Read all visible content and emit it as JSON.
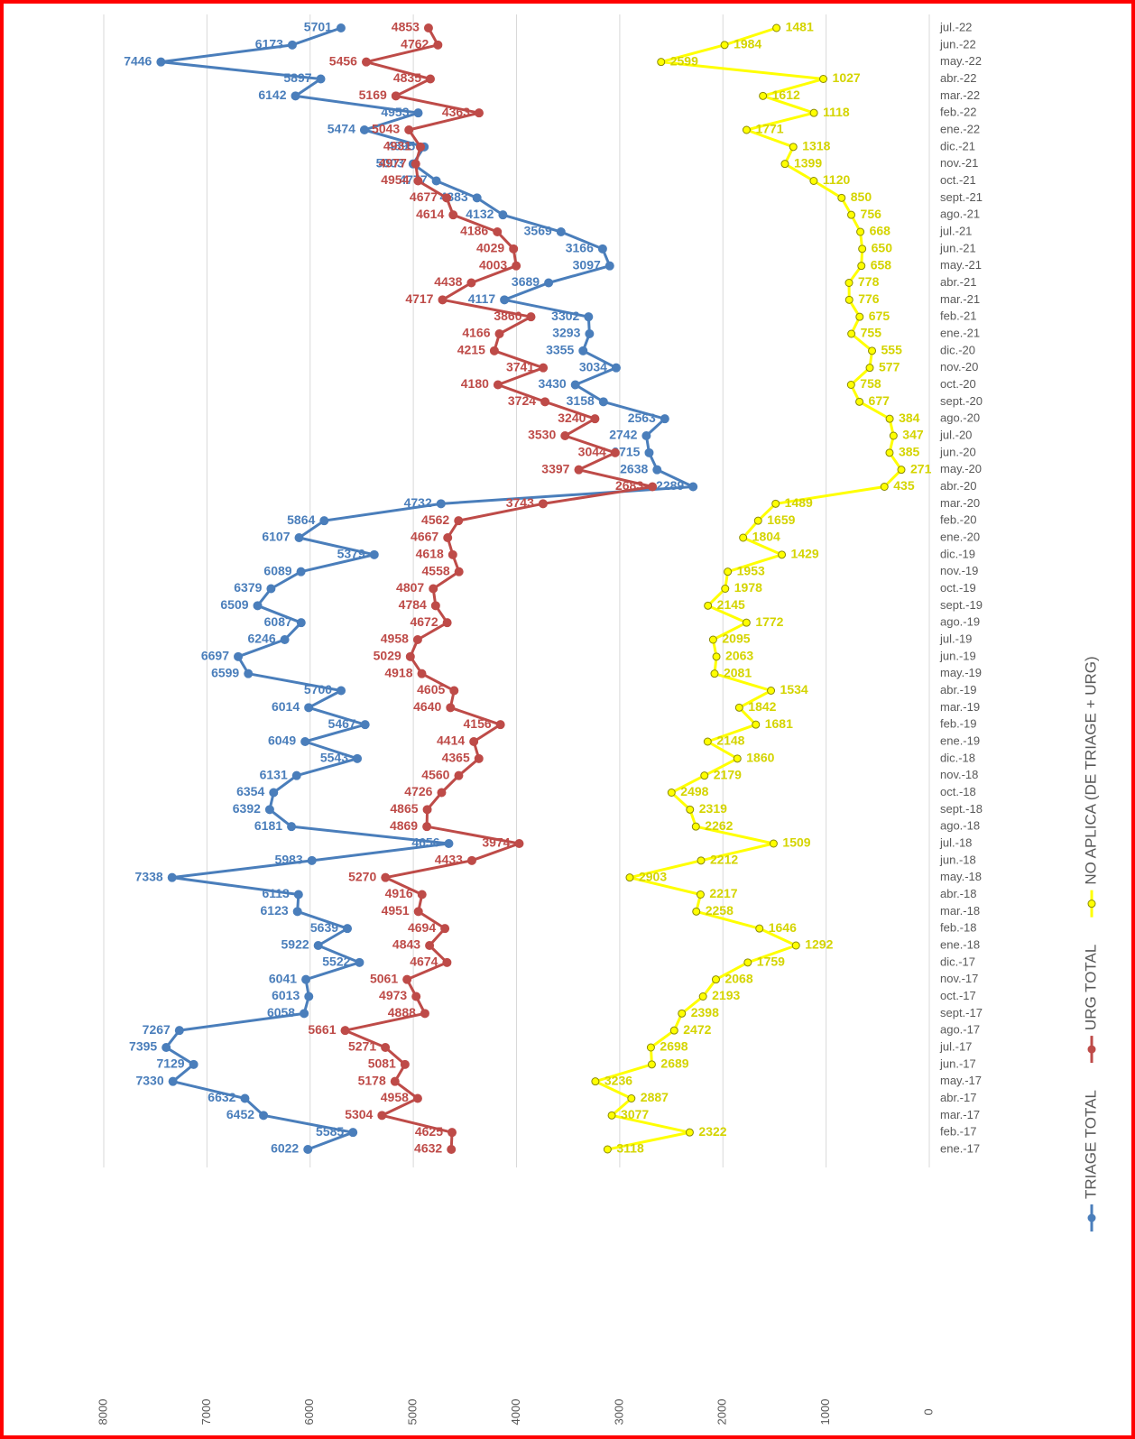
{
  "chart_data": {
    "type": "line",
    "categories": [
      "ene.-17",
      "feb.-17",
      "mar.-17",
      "abr.-17",
      "may.-17",
      "jun.-17",
      "jul.-17",
      "ago.-17",
      "sept.-17",
      "oct.-17",
      "nov.-17",
      "dic.-17",
      "ene.-18",
      "feb.-18",
      "mar.-18",
      "abr.-18",
      "may.-18",
      "jun.-18",
      "jul.-18",
      "ago.-18",
      "sept.-18",
      "oct.-18",
      "nov.-18",
      "dic.-18",
      "ene.-19",
      "feb.-19",
      "mar.-19",
      "abr.-19",
      "may.-19",
      "jun.-19",
      "jul.-19",
      "ago.-19",
      "sept.-19",
      "oct.-19",
      "nov.-19",
      "dic.-19",
      "ene.-20",
      "feb.-20",
      "mar.-20",
      "abr.-20",
      "may.-20",
      "jun.-20",
      "jul.-20",
      "ago.-20",
      "sept.-20",
      "oct.-20",
      "nov.-20",
      "dic.-20",
      "ene.-21",
      "feb.-21",
      "mar.-21",
      "abr.-21",
      "may.-21",
      "jun.-21",
      "jul.-21",
      "ago.-21",
      "sept.-21",
      "oct.-21",
      "nov.-21",
      "dic.-21",
      "ene.-22",
      "feb.-22",
      "mar.-22",
      "abr.-22",
      "may.-22",
      "jun.-22",
      "jul.-22"
    ],
    "series": [
      {
        "name": "TRIAGE TOTAL",
        "color": "#4a7ebb",
        "values": [
          6022,
          5585,
          6452,
          6632,
          7330,
          7129,
          7395,
          7267,
          6058,
          6013,
          6041,
          5522,
          5922,
          5639,
          6123,
          6113,
          7338,
          5983,
          4656,
          6181,
          6392,
          6354,
          6131,
          5543,
          6049,
          5467,
          6014,
          5700,
          6599,
          6697,
          6246,
          6087,
          6509,
          6379,
          6089,
          5379,
          6107,
          5864,
          4732,
          2289,
          2638,
          2715,
          2742,
          2563,
          3158,
          3430,
          3034,
          3355,
          3293,
          3302,
          4117,
          3689,
          3097,
          3166,
          3569,
          4132,
          4383,
          4777,
          5003,
          4895,
          5474,
          4953,
          6142,
          5897,
          7446,
          6173,
          5701
        ]
      },
      {
        "name": "URG TOTAL",
        "color": "#be4b48",
        "values": [
          4632,
          4625,
          5304,
          4958,
          5178,
          5081,
          5271,
          5661,
          4888,
          4973,
          5061,
          4674,
          4843,
          4694,
          4951,
          4916,
          5270,
          4433,
          3974,
          4869,
          4865,
          4726,
          4560,
          4365,
          4414,
          4156,
          4640,
          4605,
          4918,
          5029,
          4958,
          4672,
          4784,
          4807,
          4558,
          4618,
          4667,
          4562,
          3743,
          2683,
          3397,
          3044,
          3530,
          3240,
          3724,
          4180,
          3741,
          4215,
          4166,
          3860,
          4717,
          4438,
          4003,
          4029,
          4186,
          4614,
          4677,
          4954,
          4977,
          4931,
          5043,
          4363,
          5169,
          4835,
          5456,
          4762,
          4853
        ]
      },
      {
        "name": "NO APLICA (DE TRIAGE + URG)",
        "color": "#ffff00",
        "values": [
          3118,
          2322,
          3077,
          2887,
          3236,
          2689,
          2698,
          2472,
          2398,
          2193,
          2068,
          1759,
          1292,
          1646,
          2258,
          2217,
          2903,
          2212,
          1509,
          2262,
          2319,
          2498,
          2179,
          1860,
          2148,
          1681,
          1842,
          1534,
          2081,
          2063,
          2095,
          1772,
          2145,
          1978,
          1953,
          1429,
          1804,
          1659,
          1489,
          435,
          271,
          385,
          347,
          384,
          677,
          758,
          577,
          555,
          755,
          675,
          776,
          778,
          658,
          650,
          668,
          756,
          850,
          1120,
          1399,
          1318,
          1771,
          1118,
          1612,
          1027,
          2599,
          1984,
          1481
        ]
      }
    ],
    "ylim": [
      0,
      8000
    ],
    "yticks": [
      0,
      1000,
      2000,
      3000,
      4000,
      5000,
      6000,
      7000,
      8000
    ],
    "grid": true,
    "legend": "bottom"
  }
}
